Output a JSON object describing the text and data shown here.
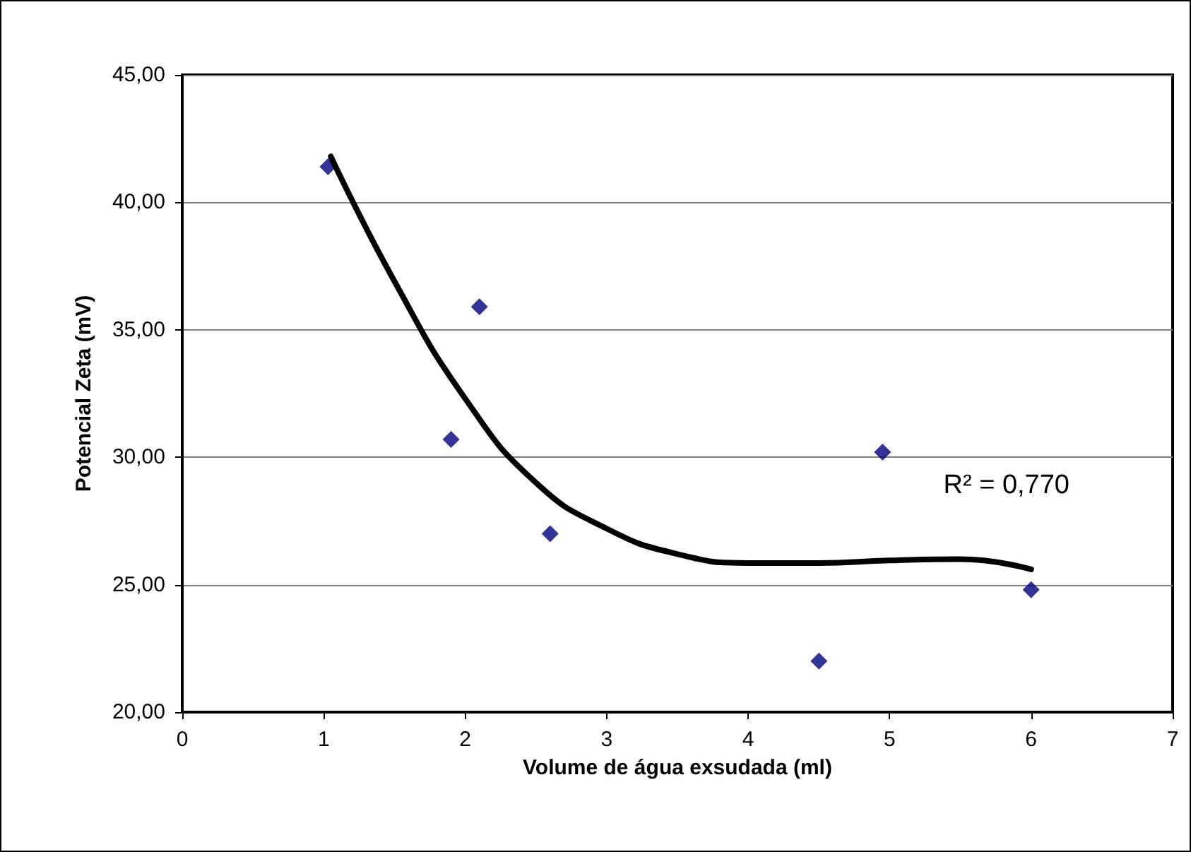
{
  "chart_data": {
    "type": "scatter",
    "xlabel": "Volume de água exsudada (ml)",
    "ylabel": "Potencial Zeta (mV)",
    "series": [
      {
        "type": "scatter",
        "color": "#000080",
        "x": [
          1.03,
          1.9,
          2.1,
          2.6,
          4.5,
          4.95,
          6.0
        ],
        "values": [
          41.4,
          30.7,
          35.9,
          27.0,
          22.0,
          30.2,
          24.8
        ],
        "marker": "diamond"
      },
      {
        "type": "line",
        "color": "#000000",
        "x": [
          1.05,
          1.5,
          2,
          2.5,
          3,
          3.5,
          4,
          4.5,
          5,
          5.5,
          6
        ],
        "values": [
          41.8,
          36.9,
          32.3,
          29.0,
          27.2,
          26.2,
          25.85,
          25.85,
          25.95,
          26.0,
          25.6
        ],
        "marker": "none",
        "line_style": "solid"
      }
    ],
    "xlim": [
      0,
      7
    ],
    "xticks": [
      0,
      1,
      2,
      3,
      4,
      5,
      6,
      7
    ],
    "ylim": [
      20,
      45
    ],
    "yticks": [
      {
        "value": 20,
        "label": "20,00"
      },
      {
        "value": 25,
        "label": "25,00"
      },
      {
        "value": 30,
        "label": "30,00"
      },
      {
        "value": 35,
        "label": "35,00"
      },
      {
        "value": 40,
        "label": "40,00"
      },
      {
        "value": 45,
        "label": "45,00"
      }
    ],
    "grid": "y",
    "annotations": [
      "R² = 0,770"
    ]
  }
}
